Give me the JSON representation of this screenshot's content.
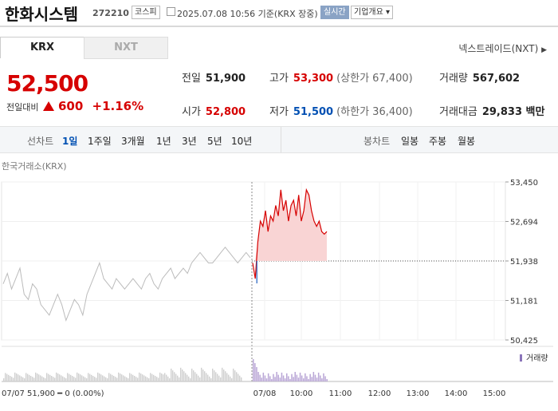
{
  "header": {
    "name": "한화시스템",
    "code": "272210",
    "market": "코스피",
    "datetime": "2025.07.08 10:56  기준(KRX 장중)",
    "live_label": "실시간",
    "info_label": "기업개요 ▾"
  },
  "tabs": {
    "krx": "KRX",
    "nxt": "NXT",
    "nexttrade_label": "넥스트레이드(NXT)"
  },
  "quote": {
    "price": "52,500",
    "change_label": "전일대비",
    "change": "600",
    "change_pct": "+1.16%",
    "prev_label": "전일",
    "prev": "51,900",
    "high_label": "고가",
    "high": "53,300",
    "upper_limit": "(상한가 67,400)",
    "volume_label": "거래량",
    "volume": "567,602",
    "open_label": "시가",
    "open": "52,800",
    "low_label": "저가",
    "low": "51,500",
    "lower_limit": "(하한가 36,400)",
    "amount_label": "거래대금",
    "amount": "29,833 백만"
  },
  "period": {
    "line_label": "선차트",
    "items": [
      "1일",
      "1주일",
      "3개월",
      "1년",
      "3년",
      "5년",
      "10년"
    ],
    "candle_label": "봉차트",
    "candle_items": [
      "일봉",
      "주봉",
      "월봉"
    ]
  },
  "chart_data": {
    "type": "line",
    "source_label": "한국거래소(KRX)",
    "y_ticks": [
      "53,450",
      "52,694",
      "51,938",
      "51,181",
      "50,425"
    ],
    "ylim": [
      50425,
      53450
    ],
    "prev_close_line": 51938,
    "x_ticks": [
      "07/08",
      "10:00",
      "11:00",
      "12:00",
      "13:00",
      "14:00",
      "15:00"
    ],
    "bottom_left_label": "07/07 51,900 ━ 0 (0.00%)",
    "volume_legend": "거래량",
    "series": [
      {
        "day": "07/07",
        "color": "#bbbbbb",
        "values": [
          51500,
          51700,
          51400,
          51600,
          51800,
          51300,
          51200,
          51500,
          51400,
          51100,
          51000,
          50900,
          51100,
          51300,
          51100,
          50800,
          51000,
          51200,
          51100,
          50900,
          51300,
          51500,
          51700,
          51900,
          51600,
          51500,
          51400,
          51600,
          51500,
          51400,
          51500,
          51600,
          51500,
          51400,
          51600,
          51700,
          51500,
          51400,
          51600,
          51700,
          51800,
          51600,
          51700,
          51800,
          51700,
          51900,
          52000,
          52100,
          52000,
          51900,
          51900,
          52000,
          52100,
          52200,
          52100,
          52000,
          51900,
          52000,
          52100,
          52000
        ]
      },
      {
        "day": "07/08",
        "color": "#d60000",
        "values": [
          51900,
          51600,
          52300,
          52700,
          52600,
          52900,
          52500,
          52800,
          52700,
          53000,
          52800,
          53300,
          52900,
          53100,
          52700,
          53000,
          53100,
          52800,
          53200,
          52700,
          52900,
          53300,
          53200,
          52900,
          52700,
          52600,
          52700,
          52500,
          52450,
          52500
        ]
      }
    ]
  }
}
